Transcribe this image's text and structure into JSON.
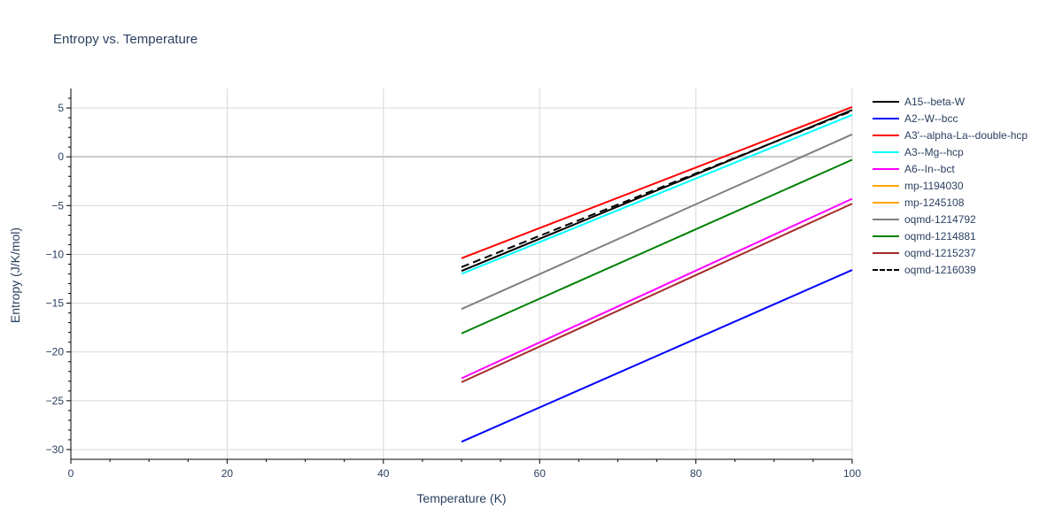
{
  "chart_data": {
    "type": "line",
    "title": "Entropy vs. Temperature",
    "xlabel": "Temperature (K)",
    "ylabel": "Entropy (J/K/mol)",
    "xlim": [
      0,
      100
    ],
    "ylim": [
      -31,
      7
    ],
    "xticks": [
      0,
      20,
      40,
      60,
      80,
      100
    ],
    "xtick_labels": [
      "0",
      "20",
      "40",
      "60",
      "80",
      "100"
    ],
    "yticks": [
      5,
      0,
      -5,
      -10,
      -15,
      -20,
      -25,
      -30
    ],
    "ytick_labels": [
      "5",
      "0",
      "−5",
      "−10",
      "−15",
      "−20",
      "−25",
      "−30"
    ],
    "grid": true,
    "legend_position": "right",
    "series": [
      {
        "name": "A15--beta-W",
        "color": "#000000",
        "dash": "solid",
        "x": [
          50,
          100
        ],
        "y": [
          -11.7,
          4.8
        ]
      },
      {
        "name": "A2--W--bcc",
        "color": "#0000ff",
        "dash": "solid",
        "x": [
          50,
          100
        ],
        "y": [
          -29.2,
          -11.6
        ]
      },
      {
        "name": "A3'--alpha-La--double-hcp",
        "color": "#ff0000",
        "dash": "solid",
        "x": [
          50,
          100
        ],
        "y": [
          -10.4,
          5.1
        ]
      },
      {
        "name": "A3--Mg--hcp",
        "color": "#00ffff",
        "dash": "solid",
        "x": [
          50,
          100
        ],
        "y": [
          -12.0,
          4.3
        ]
      },
      {
        "name": "A6--In--bct",
        "color": "#ff00ff",
        "dash": "solid",
        "x": [
          50,
          100
        ],
        "y": [
          -22.7,
          -4.3
        ]
      },
      {
        "name": "mp-1194030",
        "color": "#ffa500",
        "dash": "solid",
        "x": [],
        "y": []
      },
      {
        "name": "mp-1245108",
        "color": "#ffa500",
        "dash": "solid",
        "x": [],
        "y": []
      },
      {
        "name": "oqmd-1214792",
        "color": "#808080",
        "dash": "solid",
        "x": [
          50,
          100
        ],
        "y": [
          -15.6,
          2.3
        ]
      },
      {
        "name": "oqmd-1214881",
        "color": "#008000",
        "dash": "solid",
        "x": [
          50,
          100
        ],
        "y": [
          -18.1,
          -0.3
        ]
      },
      {
        "name": "oqmd-1215237",
        "color": "#a52a2a",
        "dash": "solid",
        "x": [
          50,
          100
        ],
        "y": [
          -23.1,
          -4.8
        ]
      },
      {
        "name": "oqmd-1216039",
        "color": "#000000",
        "dash": "dash",
        "x": [
          50,
          100
        ],
        "y": [
          -11.3,
          4.7
        ]
      }
    ]
  }
}
